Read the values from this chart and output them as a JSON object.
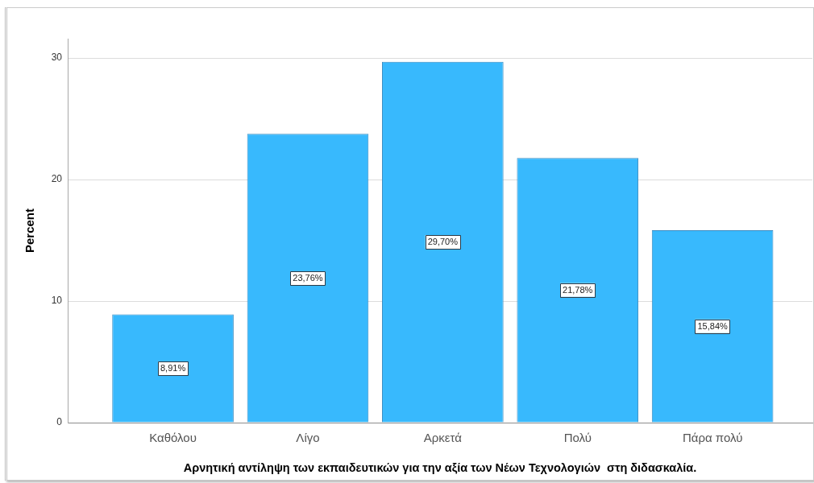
{
  "chart_data": {
    "type": "bar",
    "xlabel": "Αρνητική αντίληψη των εκπαιδευτικών για την αξία των Νέων Τεχνολογιών  στη διδασκαλία.",
    "ylabel": "Percent",
    "categories": [
      "Καθόλου",
      "Λίγο",
      "Αρκετά",
      "Πολύ",
      "Πάρα πολύ"
    ],
    "values": [
      8.91,
      23.76,
      29.7,
      21.78,
      15.84
    ],
    "value_labels": [
      "8,91%",
      "23,76%",
      "29,70%",
      "21,78%",
      "15,84%"
    ],
    "color": "#38b9fd",
    "ylim": [
      0,
      31.6
    ],
    "yticks": [
      0,
      10,
      20,
      30
    ],
    "grid": "y"
  }
}
